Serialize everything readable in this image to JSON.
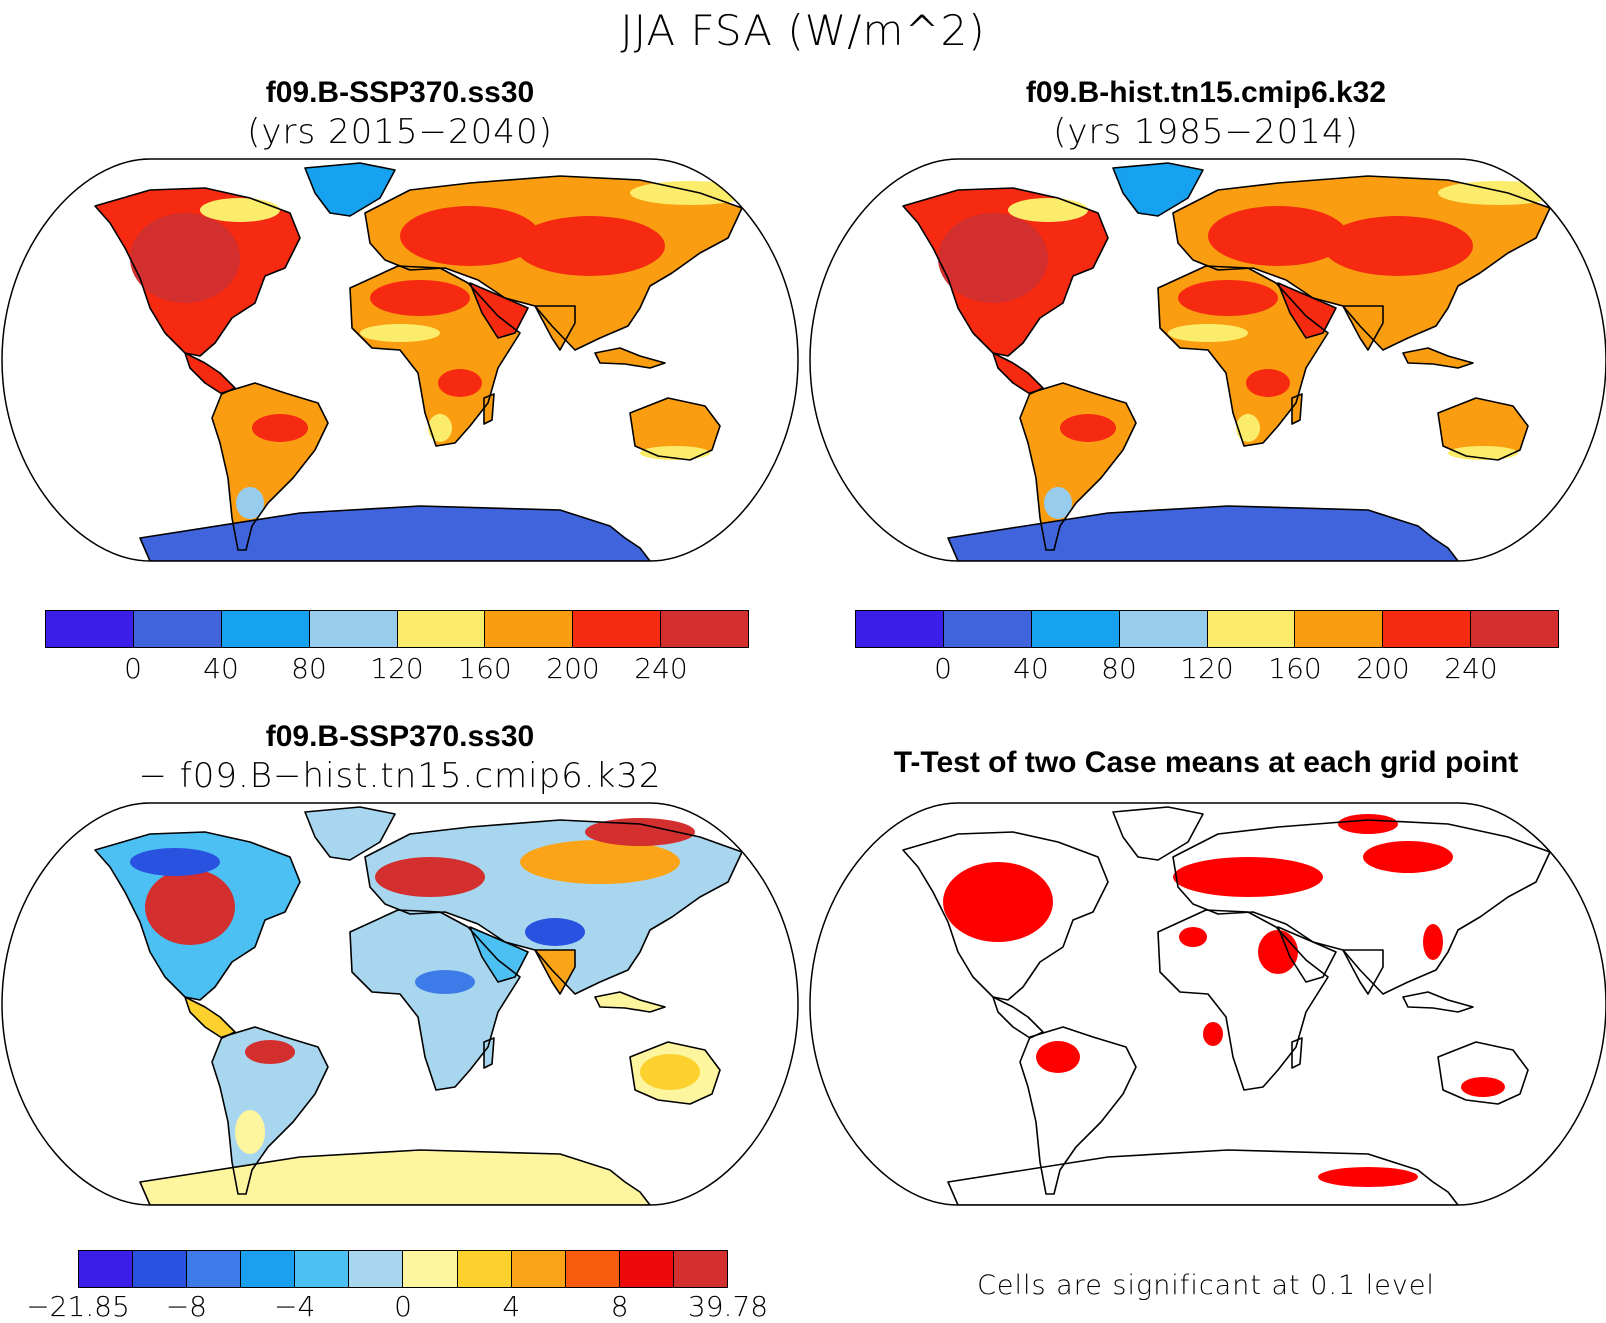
{
  "title": "JJA FSA (W/m^2)",
  "panels": [
    {
      "id": "p1",
      "title": "f09.B-SSP370.ss30",
      "subtitle": "(yrs 2015−2040)",
      "mode": "abs"
    },
    {
      "id": "p2",
      "title": "f09.B-hist.tn15.cmip6.k32",
      "subtitle": "(yrs 1985−2014)",
      "mode": "abs"
    },
    {
      "id": "p3",
      "title": "f09.B-SSP370.ss30",
      "subtitle": "− f09.B−hist.tn15.cmip6.k32",
      "mode": "diff"
    },
    {
      "id": "p4",
      "title": "T-Test of two Case means at each grid point",
      "subtitle": "",
      "mode": "ttest"
    }
  ],
  "colorbar_abs": {
    "colors": [
      "#3b1ee8",
      "#3f64dc",
      "#16a2ee",
      "#98ccec",
      "#fbed6b",
      "#fa9d10",
      "#f52a10",
      "#d32f2f"
    ],
    "labels": [
      "0",
      "40",
      "80",
      "120",
      "160",
      "200",
      "240"
    ]
  },
  "colorbar_diff": {
    "colors": [
      "#3b1ee8",
      "#2a52e0",
      "#3d7ce8",
      "#1aa0ef",
      "#4cc0f2",
      "#a8d6ee",
      "#fdf69e",
      "#fcd12e",
      "#fba418",
      "#f85a0e",
      "#ee0a0a",
      "#d32f2f"
    ],
    "labels": [
      "−21.85",
      "−8",
      "−4",
      "0",
      "4",
      "8",
      "39.78"
    ]
  },
  "ttest_note": "Cells are significant at 0.1 level",
  "ttest_color": "#ff0000"
}
